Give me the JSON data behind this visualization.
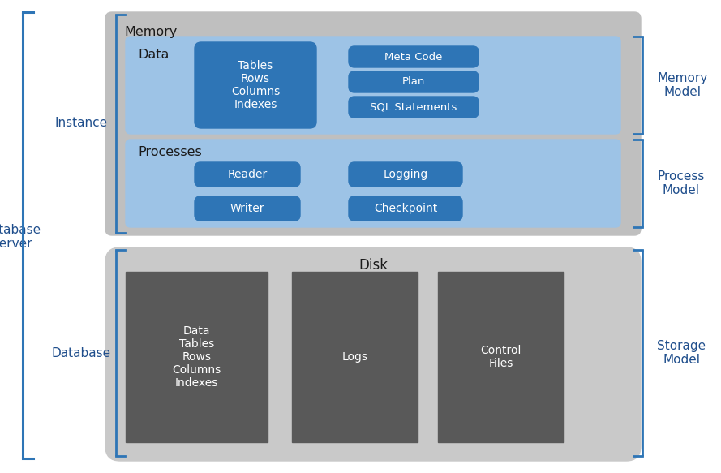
{
  "bg_color": "#ffffff",
  "label_color": "#1F4E8C",
  "dark_blue_box": "#2E75B6",
  "light_blue_section": "#9DC3E6",
  "gray_outer": "#BFBFBF",
  "light_gray_disk": "#C9C9C9",
  "dark_gray_box": "#595959",
  "white_text": "#ffffff",
  "black_text": "#1a1a1a",
  "bracket_color": "#2E75B6",
  "labels": {
    "database_server": "Database\nServer",
    "instance": "Instance",
    "database": "Database",
    "memory_model": "Memory\nModel",
    "process_model": "Process\nModel",
    "storage_model": "Storage\nModel",
    "memory": "Memory",
    "data": "Data",
    "processes": "Processes",
    "disk": "Disk"
  },
  "memory_data_box": "Tables\nRows\nColumns\nIndexes",
  "memory_meta_boxes": [
    "Meta Code",
    "Plan",
    "SQL Statements"
  ],
  "process_boxes_left": [
    "Reader",
    "Writer"
  ],
  "process_boxes_right": [
    "Logging",
    "Checkpoint"
  ],
  "disk_boxes": [
    "Data\nTables\nRows\nColumns\nIndexes",
    "Logs",
    "Control\nFiles"
  ]
}
